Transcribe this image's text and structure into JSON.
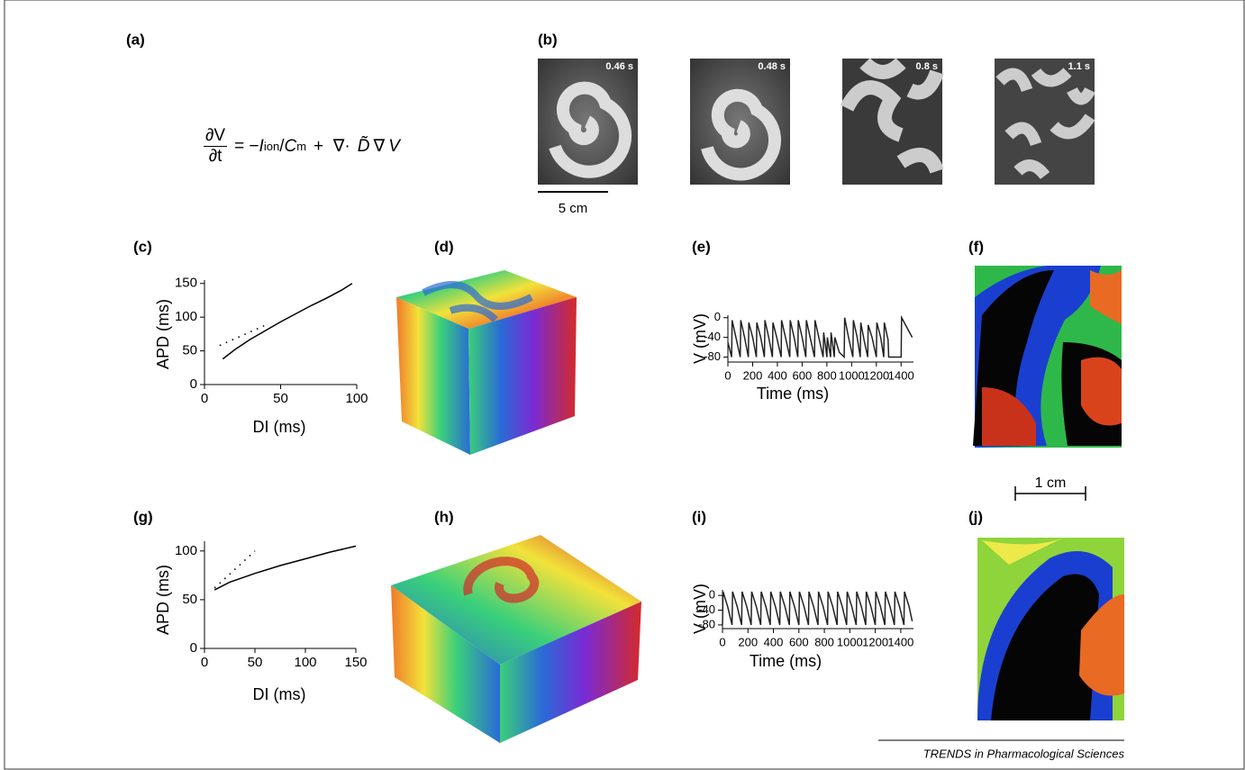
{
  "panel_labels": [
    "(a)",
    "(b)",
    "(c)",
    "(d)",
    "(e)",
    "(f)",
    "(g)",
    "(h)",
    "(i)",
    "(j)"
  ],
  "equation": {
    "numerator": "∂V",
    "denominator": "∂t",
    "terms": [
      "= −",
      "I",
      "ion",
      "/",
      "C",
      "m",
      "+  ∇·",
      "D̃",
      "∇",
      "V"
    ]
  },
  "panel_b": {
    "times": [
      "0.46 s",
      "0.48 s",
      "0.8 s",
      "1.1 s"
    ],
    "scale_bar": "5 cm"
  },
  "scale_bar_f": "1 cm",
  "footer": "TRENDS in Pharmacological Sciences",
  "chart_data": [
    {
      "type": "line",
      "xlabel": "DI (ms)",
      "ylabel": "APD (ms)",
      "xlim": [
        0,
        100
      ],
      "xticks": [
        0,
        50,
        100
      ],
      "ylim": [
        0,
        155
      ],
      "yticks": [
        0,
        50,
        100,
        150
      ],
      "series": [
        {
          "color": "#000000",
          "style": "solid",
          "x": [
            12,
            20,
            30,
            40,
            50,
            60,
            70,
            80,
            90,
            97
          ],
          "values": [
            38,
            52,
            67,
            80,
            93,
            105,
            117,
            128,
            140,
            150
          ]
        },
        {
          "color": "#000000",
          "style": "dotted",
          "x": [
            10,
            40
          ],
          "values": [
            58,
            88
          ]
        }
      ]
    },
    {
      "type": "line",
      "xlabel": "Time (ms)",
      "ylabel": "V (mV)",
      "xlim": [
        0,
        1500
      ],
      "xticks": [
        0,
        200,
        400,
        600,
        800,
        1000,
        1200,
        1400
      ],
      "ylim": [
        -90,
        5
      ],
      "yticks": [
        0,
        -40,
        -80
      ],
      "series": [
        {
          "color": "#222222",
          "style": "solid",
          "x": [
            0,
            30,
            34,
            65,
            100,
            104,
            135,
            165,
            169,
            200,
            230,
            234,
            265,
            295,
            299,
            330,
            360,
            364,
            395,
            430,
            434,
            465,
            500,
            504,
            535,
            565,
            569,
            600,
            630,
            634,
            665,
            700,
            704,
            735,
            770,
            774,
            790,
            800,
            804,
            820,
            830,
            834,
            850,
            860,
            864,
            900,
            940,
            944,
            975,
            1010,
            1014,
            1045,
            1070,
            1074,
            1100,
            1130,
            1134,
            1165,
            1200,
            1204,
            1235,
            1260,
            1264,
            1295,
            1300,
            1400,
            1404,
            1490
          ],
          "values": [
            -50,
            -80,
            -5,
            -40,
            -80,
            -5,
            -40,
            -80,
            -10,
            -40,
            -80,
            -10,
            -40,
            -80,
            -5,
            -40,
            -80,
            -10,
            -40,
            -80,
            -5,
            -40,
            -80,
            -5,
            -40,
            -80,
            -5,
            -40,
            -80,
            -5,
            -40,
            -80,
            -5,
            -40,
            -80,
            -30,
            -60,
            -80,
            -40,
            -65,
            -80,
            -30,
            -60,
            -80,
            -40,
            -70,
            -80,
            0,
            -40,
            -80,
            -5,
            -40,
            -80,
            -10,
            -45,
            -80,
            -15,
            -40,
            -80,
            -10,
            -40,
            -80,
            -10,
            -45,
            -80,
            -80,
            0,
            -40
          ]
        }
      ]
    },
    {
      "type": "line",
      "xlabel": "DI (ms)",
      "ylabel": "APD (ms)",
      "xlim": [
        0,
        150
      ],
      "xticks": [
        0,
        50,
        100,
        150
      ],
      "ylim": [
        0,
        110
      ],
      "yticks": [
        0,
        50,
        100
      ],
      "series": [
        {
          "color": "#000000",
          "style": "solid",
          "x": [
            10,
            25,
            50,
            75,
            100,
            125,
            150
          ],
          "values": [
            60,
            68,
            77,
            85,
            92,
            99,
            105
          ]
        },
        {
          "color": "#000000",
          "style": "dotted",
          "x": [
            10,
            50
          ],
          "values": [
            62,
            100
          ]
        }
      ]
    },
    {
      "type": "line",
      "xlabel": "Time (ms)",
      "ylabel": "V (mV)",
      "xlim": [
        0,
        1500
      ],
      "xticks": [
        0,
        200,
        400,
        600,
        800,
        1000,
        1200,
        1400
      ],
      "ylim": [
        -90,
        15
      ],
      "yticks": [
        0,
        -40,
        -80
      ],
      "series": [
        {
          "color": "#222222",
          "style": "solid",
          "x": [
            0,
            4,
            40,
            75,
            79,
            115,
            150,
            154,
            190,
            225,
            229,
            265,
            300,
            304,
            340,
            375,
            379,
            415,
            450,
            454,
            490,
            525,
            529,
            565,
            600,
            604,
            640,
            675,
            679,
            715,
            750,
            754,
            790,
            825,
            829,
            865,
            900,
            904,
            940,
            975,
            979,
            1015,
            1050,
            1054,
            1090,
            1125,
            1129,
            1165,
            1200,
            1204,
            1240,
            1275,
            1279,
            1315,
            1350,
            1354,
            1390,
            1425,
            1429,
            1465,
            1490
          ],
          "values": [
            -80,
            10,
            -30,
            -80,
            10,
            -30,
            -80,
            10,
            -30,
            -80,
            10,
            -30,
            -80,
            10,
            -30,
            -80,
            10,
            -30,
            -80,
            10,
            -30,
            -80,
            10,
            -30,
            -80,
            10,
            -30,
            -80,
            10,
            -30,
            -80,
            10,
            -30,
            -80,
            10,
            -30,
            -80,
            10,
            -30,
            -80,
            10,
            -30,
            -80,
            10,
            -30,
            -80,
            10,
            -30,
            -80,
            10,
            -30,
            -80,
            10,
            -30,
            -80,
            10,
            -30,
            -80,
            10,
            -30,
            -70
          ]
        }
      ]
    }
  ]
}
